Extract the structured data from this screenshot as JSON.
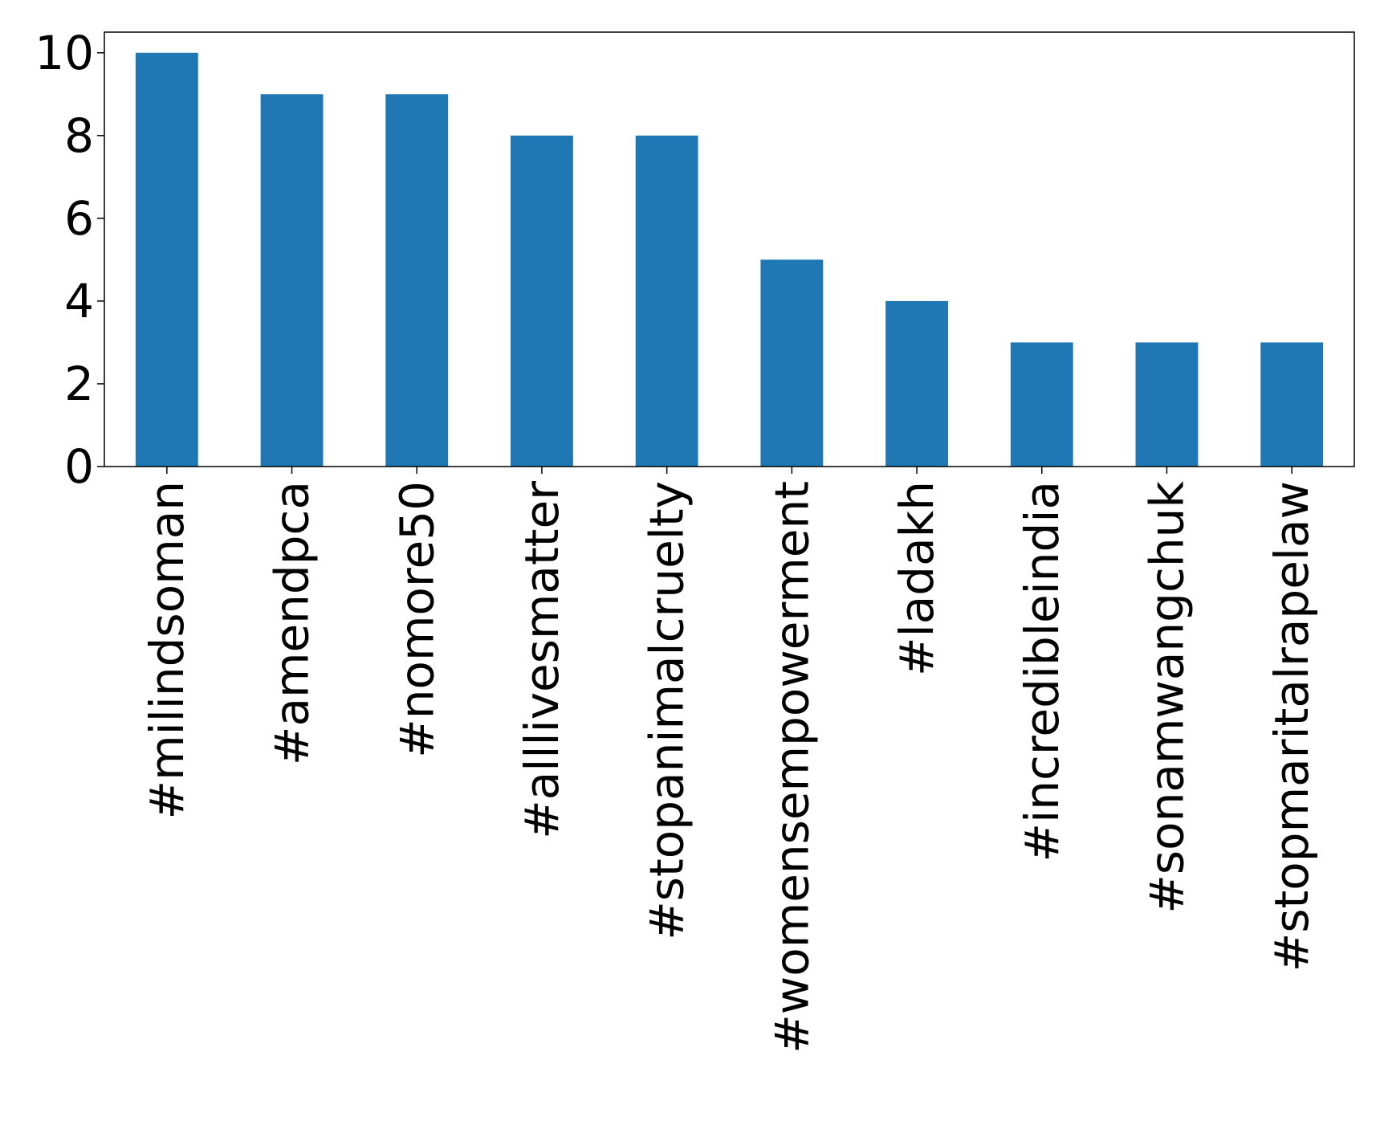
{
  "chart_data": {
    "type": "bar",
    "title": "",
    "xlabel": "",
    "ylabel": "",
    "categories": [
      "#milindsoman",
      "#amendpca",
      "#nomore50",
      "#alllivesmatter",
      "#stopanimalcruelty",
      "#womensempowerment",
      "#ladakh",
      "#incredibleindia",
      "#sonamwangchuk",
      "#stopmaritalrapelaw"
    ],
    "values": [
      10,
      9,
      9,
      8,
      8,
      5,
      4,
      3,
      3,
      3
    ],
    "ylim": [
      0,
      10.5
    ],
    "yticks": [
      0,
      2,
      4,
      6,
      8,
      10
    ],
    "ytick_labels": [
      "0",
      "2",
      "4",
      "6",
      "8",
      "10"
    ],
    "bar_color": "#1f77b4",
    "grid": false,
    "legend": "none"
  }
}
